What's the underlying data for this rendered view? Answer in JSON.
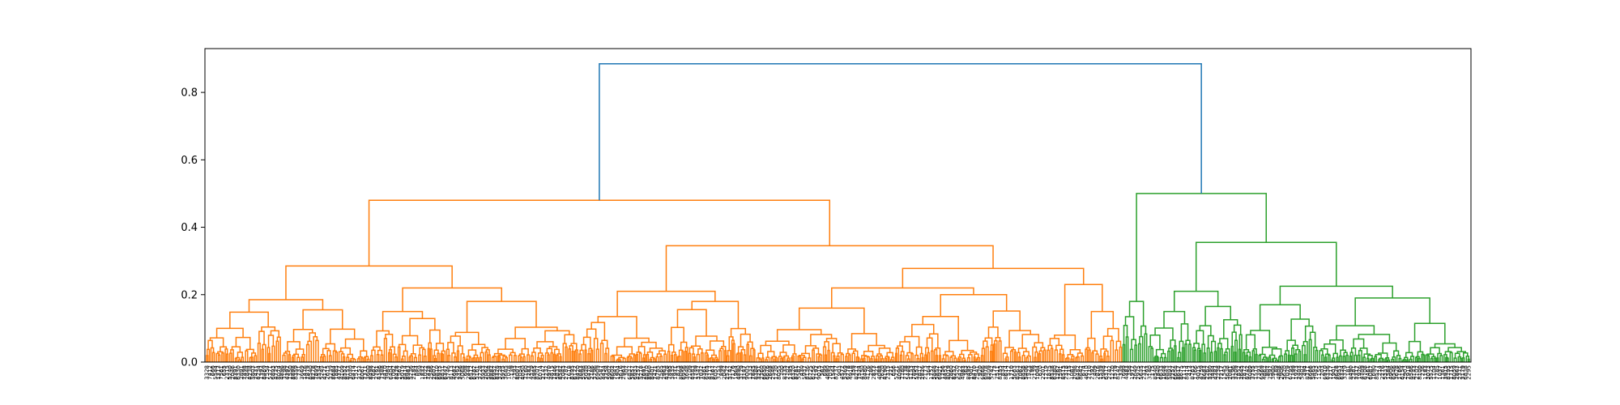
{
  "chart_data": {
    "type": "dendrogram",
    "title": "",
    "xlabel": "",
    "ylabel": "",
    "ylim": [
      0,
      0.93
    ],
    "yticks": [
      0.0,
      0.2,
      0.4,
      0.6,
      0.8
    ],
    "ytick_labels": [
      "0.0",
      "0.2",
      "0.4",
      "0.6",
      "0.8"
    ],
    "grid": false,
    "legend": "none",
    "leaf_count_estimate": 440,
    "leaf_labels_legible": false,
    "root_height": 0.885,
    "clusters": [
      {
        "color": "#ff7f0e",
        "leaf_share": 0.725,
        "top_height": 0.48,
        "children": [
          {
            "leaf_share": 0.295,
            "top_height": 0.285,
            "children": [
              {
                "leaf_share": 0.13,
                "top_height": 0.185,
                "children": [
                  {
                    "leaf_share": 0.06,
                    "top_height": 0.148
                  },
                  {
                    "leaf_share": 0.07,
                    "top_height": 0.155
                  }
                ]
              },
              {
                "leaf_share": 0.165,
                "top_height": 0.22,
                "children": [
                  {
                    "leaf_share": 0.06,
                    "top_height": 0.15
                  },
                  {
                    "leaf_share": 0.105,
                    "top_height": 0.18
                  }
                ]
              }
            ]
          },
          {
            "leaf_share": 0.43,
            "top_height": 0.345,
            "children": [
              {
                "leaf_share": 0.14,
                "top_height": 0.21,
                "children": [
                  {
                    "leaf_share": 0.07,
                    "top_height": 0.135
                  },
                  {
                    "leaf_share": 0.07,
                    "top_height": 0.18
                  }
                ]
              },
              {
                "leaf_share": 0.29,
                "top_height": 0.278,
                "children": [
                  {
                    "leaf_share": 0.23,
                    "top_height": 0.22,
                    "children": [
                      {
                        "leaf_share": 0.11,
                        "top_height": 0.16
                      },
                      {
                        "leaf_share": 0.12,
                        "top_height": 0.2
                      }
                    ]
                  },
                  {
                    "leaf_share": 0.06,
                    "top_height": 0.23,
                    "children": [
                      {
                        "leaf_share": 0.03,
                        "top_height": 0.08
                      },
                      {
                        "leaf_share": 0.03,
                        "top_height": 0.15
                      }
                    ]
                  }
                ]
              }
            ]
          }
        ]
      },
      {
        "color": "#2ca02c",
        "leaf_share": 0.275,
        "top_height": 0.5,
        "children": [
          {
            "leaf_share": 0.02,
            "top_height": 0.18
          },
          {
            "leaf_share": 0.255,
            "top_height": 0.355,
            "children": [
              {
                "leaf_share": 0.075,
                "top_height": 0.21,
                "children": [
                  {
                    "leaf_share": 0.035,
                    "top_height": 0.15
                  },
                  {
                    "leaf_share": 0.04,
                    "top_height": 0.165
                  }
                ]
              },
              {
                "leaf_share": 0.18,
                "top_height": 0.225,
                "children": [
                  {
                    "leaf_share": 0.06,
                    "top_height": 0.17
                  },
                  {
                    "leaf_share": 0.12,
                    "top_height": 0.19
                  }
                ]
              }
            ]
          }
        ]
      }
    ],
    "link_colors": {
      "above_threshold": "#1f77b4"
    }
  }
}
